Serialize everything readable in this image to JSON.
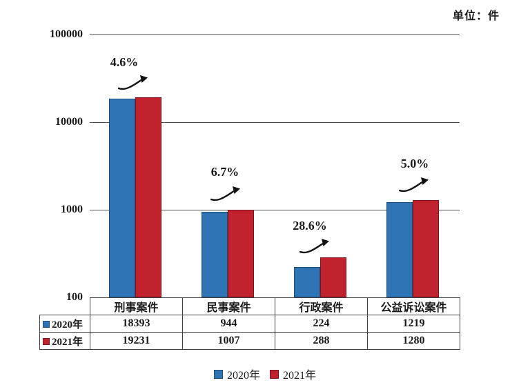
{
  "unit_label": "单位：件",
  "chart_data": {
    "type": "bar",
    "y_scale": "log",
    "unit": "件",
    "categories": [
      "刑事案件",
      "民事案件",
      "行政案件",
      "公益诉讼案件"
    ],
    "series": [
      {
        "name": "2020年",
        "color": "#2E74B5",
        "border_color": "#1F4E79",
        "values": [
          18393,
          944,
          224,
          1219
        ]
      },
      {
        "name": "2021年",
        "color": "#C0232E",
        "border_color": "#7F161F",
        "values": [
          19231,
          1007,
          288,
          1280
        ]
      }
    ],
    "growth_annotations": [
      "4.6%",
      "6.7%",
      "28.6%",
      "5.0%"
    ],
    "ylim": [
      100,
      100000
    ],
    "yticks": [
      "100000",
      "10000",
      "1000",
      "100"
    ],
    "grid": true,
    "legend_position": "bottom",
    "gridline_color": "#4d4d4d"
  }
}
